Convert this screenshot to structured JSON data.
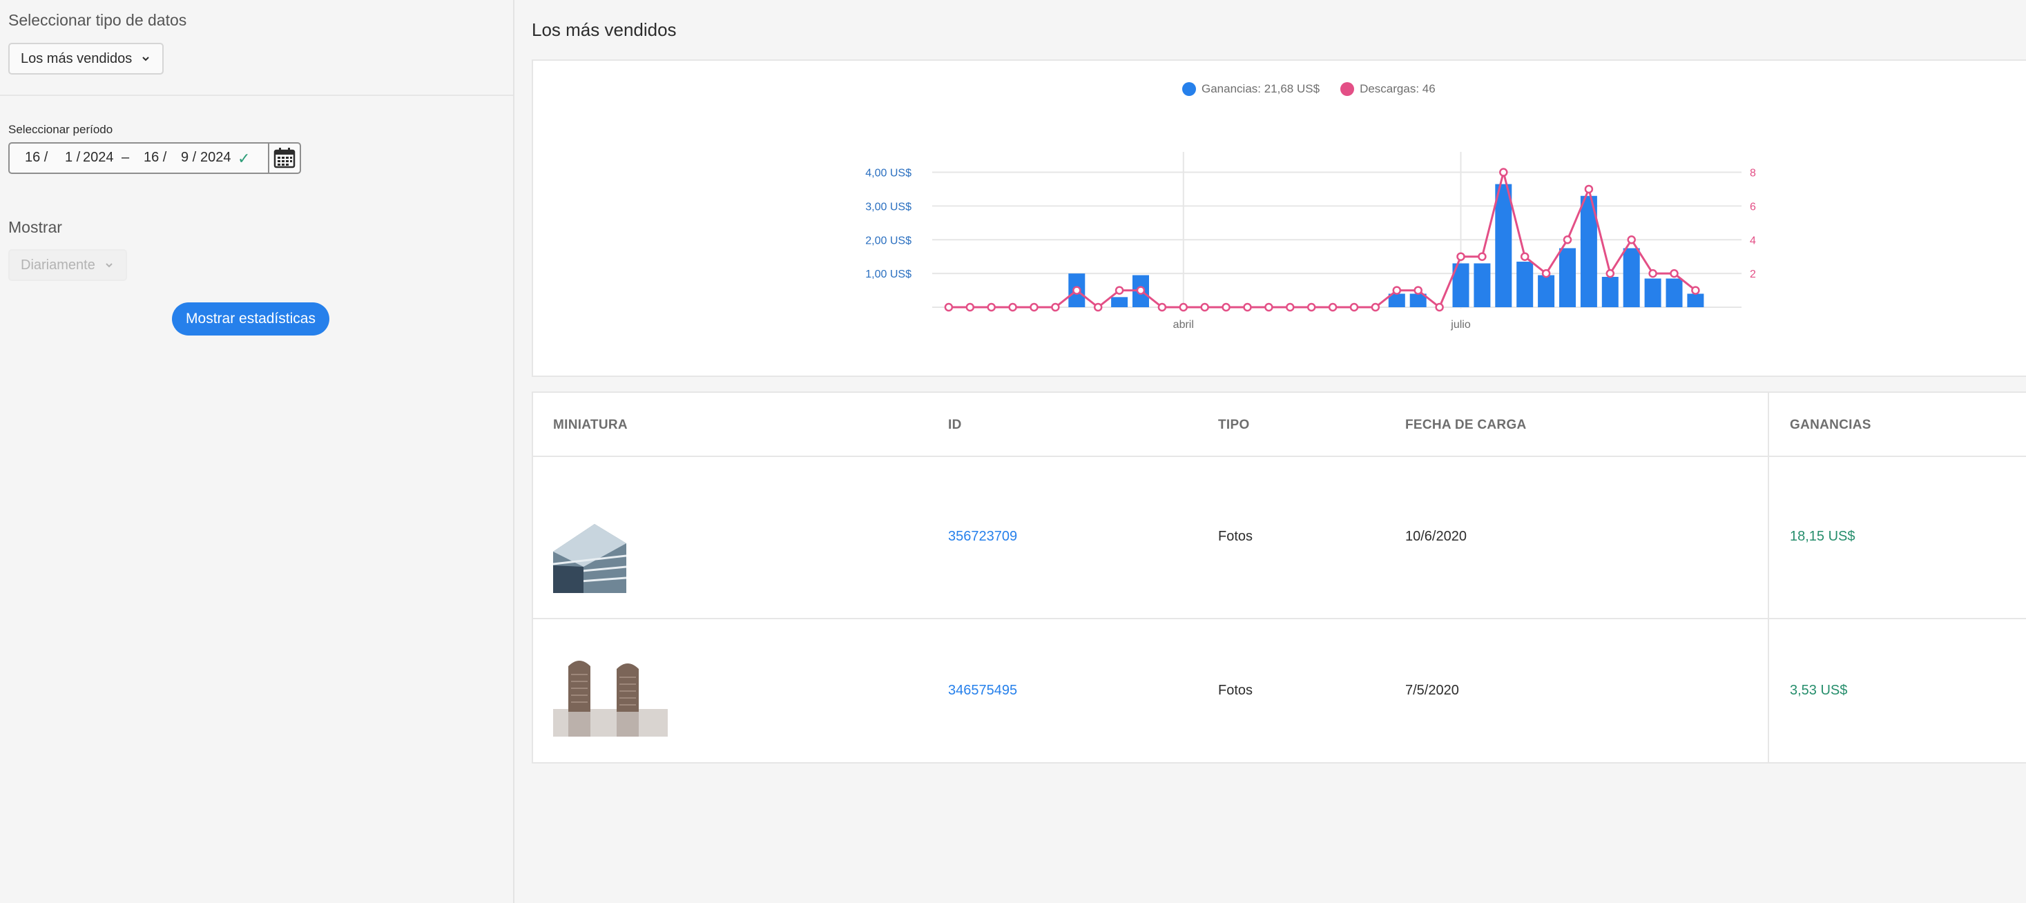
{
  "sidebar": {
    "data_type_label": "Seleccionar tipo de datos",
    "data_type_value": "Los más vendidos",
    "period_label": "Seleccionar período",
    "date_start_day": "16 /",
    "date_start_month": "1 /",
    "date_start_year": "2024",
    "date_sep": "–",
    "date_end_day": "16 /",
    "date_end_month": "9 /",
    "date_end_year": "2024",
    "show_label": "Mostrar",
    "show_value": "Diariamente",
    "show_button": "Mostrar estadísticas"
  },
  "main": {
    "title": "Los más vendidos"
  },
  "colors": {
    "earnings": "#2680eb",
    "downloads": "#e34f86"
  },
  "chart_data": {
    "type": "bar",
    "legend": {
      "earnings": "Ganancias: 21,68 US$",
      "downloads": "Descargas: 46"
    },
    "x_tick_labels": [
      "abril",
      "julio"
    ],
    "x_tick_index": [
      11,
      24
    ],
    "left_axis_labels": [
      "1,00 US$",
      "2,00 US$",
      "3,00 US$",
      "4,00 US$"
    ],
    "left_axis_values": [
      1,
      2,
      3,
      4
    ],
    "right_axis_labels": [
      "2",
      "4",
      "6",
      "8"
    ],
    "right_axis_values": [
      2,
      4,
      6,
      8
    ],
    "ylim_earnings": [
      0,
      4.4
    ],
    "ylim_downloads": [
      0,
      8.8
    ],
    "series": [
      {
        "name": "Ganancias: 21,68 US$",
        "kind": "bar",
        "values": [
          0,
          0,
          0,
          0,
          0,
          0,
          1.0,
          0,
          0.3,
          0.95,
          0,
          0,
          0,
          0,
          0,
          0,
          0,
          0,
          0,
          0,
          0,
          0.4,
          0.4,
          0,
          1.3,
          1.3,
          3.65,
          1.35,
          0.95,
          1.75,
          3.3,
          0.9,
          1.75,
          0.85,
          0.85,
          0.4
        ]
      },
      {
        "name": "Descargas: 46",
        "kind": "line",
        "values": [
          0,
          0,
          0,
          0,
          0,
          0,
          1,
          0,
          1,
          1,
          0,
          0,
          0,
          0,
          0,
          0,
          0,
          0,
          0,
          0,
          0,
          1,
          1,
          0,
          3,
          3,
          8,
          3,
          2,
          4,
          7,
          2,
          4,
          2,
          2,
          1
        ]
      }
    ]
  },
  "table": {
    "headers": {
      "thumb": "MINIATURA",
      "id": "ID",
      "type": "TIPO",
      "date": "FECHA DE CARGA",
      "earnings": "GANANCIAS"
    },
    "rows": [
      {
        "id": "356723709",
        "type": "Fotos",
        "date": "10/6/2020",
        "earnings": "18,15 US$",
        "thumb_icon": "building-photo"
      },
      {
        "id": "346575495",
        "type": "Fotos",
        "date": "7/5/2020",
        "earnings": "3,53 US$",
        "thumb_icon": "stone-tablets-photo"
      }
    ]
  }
}
